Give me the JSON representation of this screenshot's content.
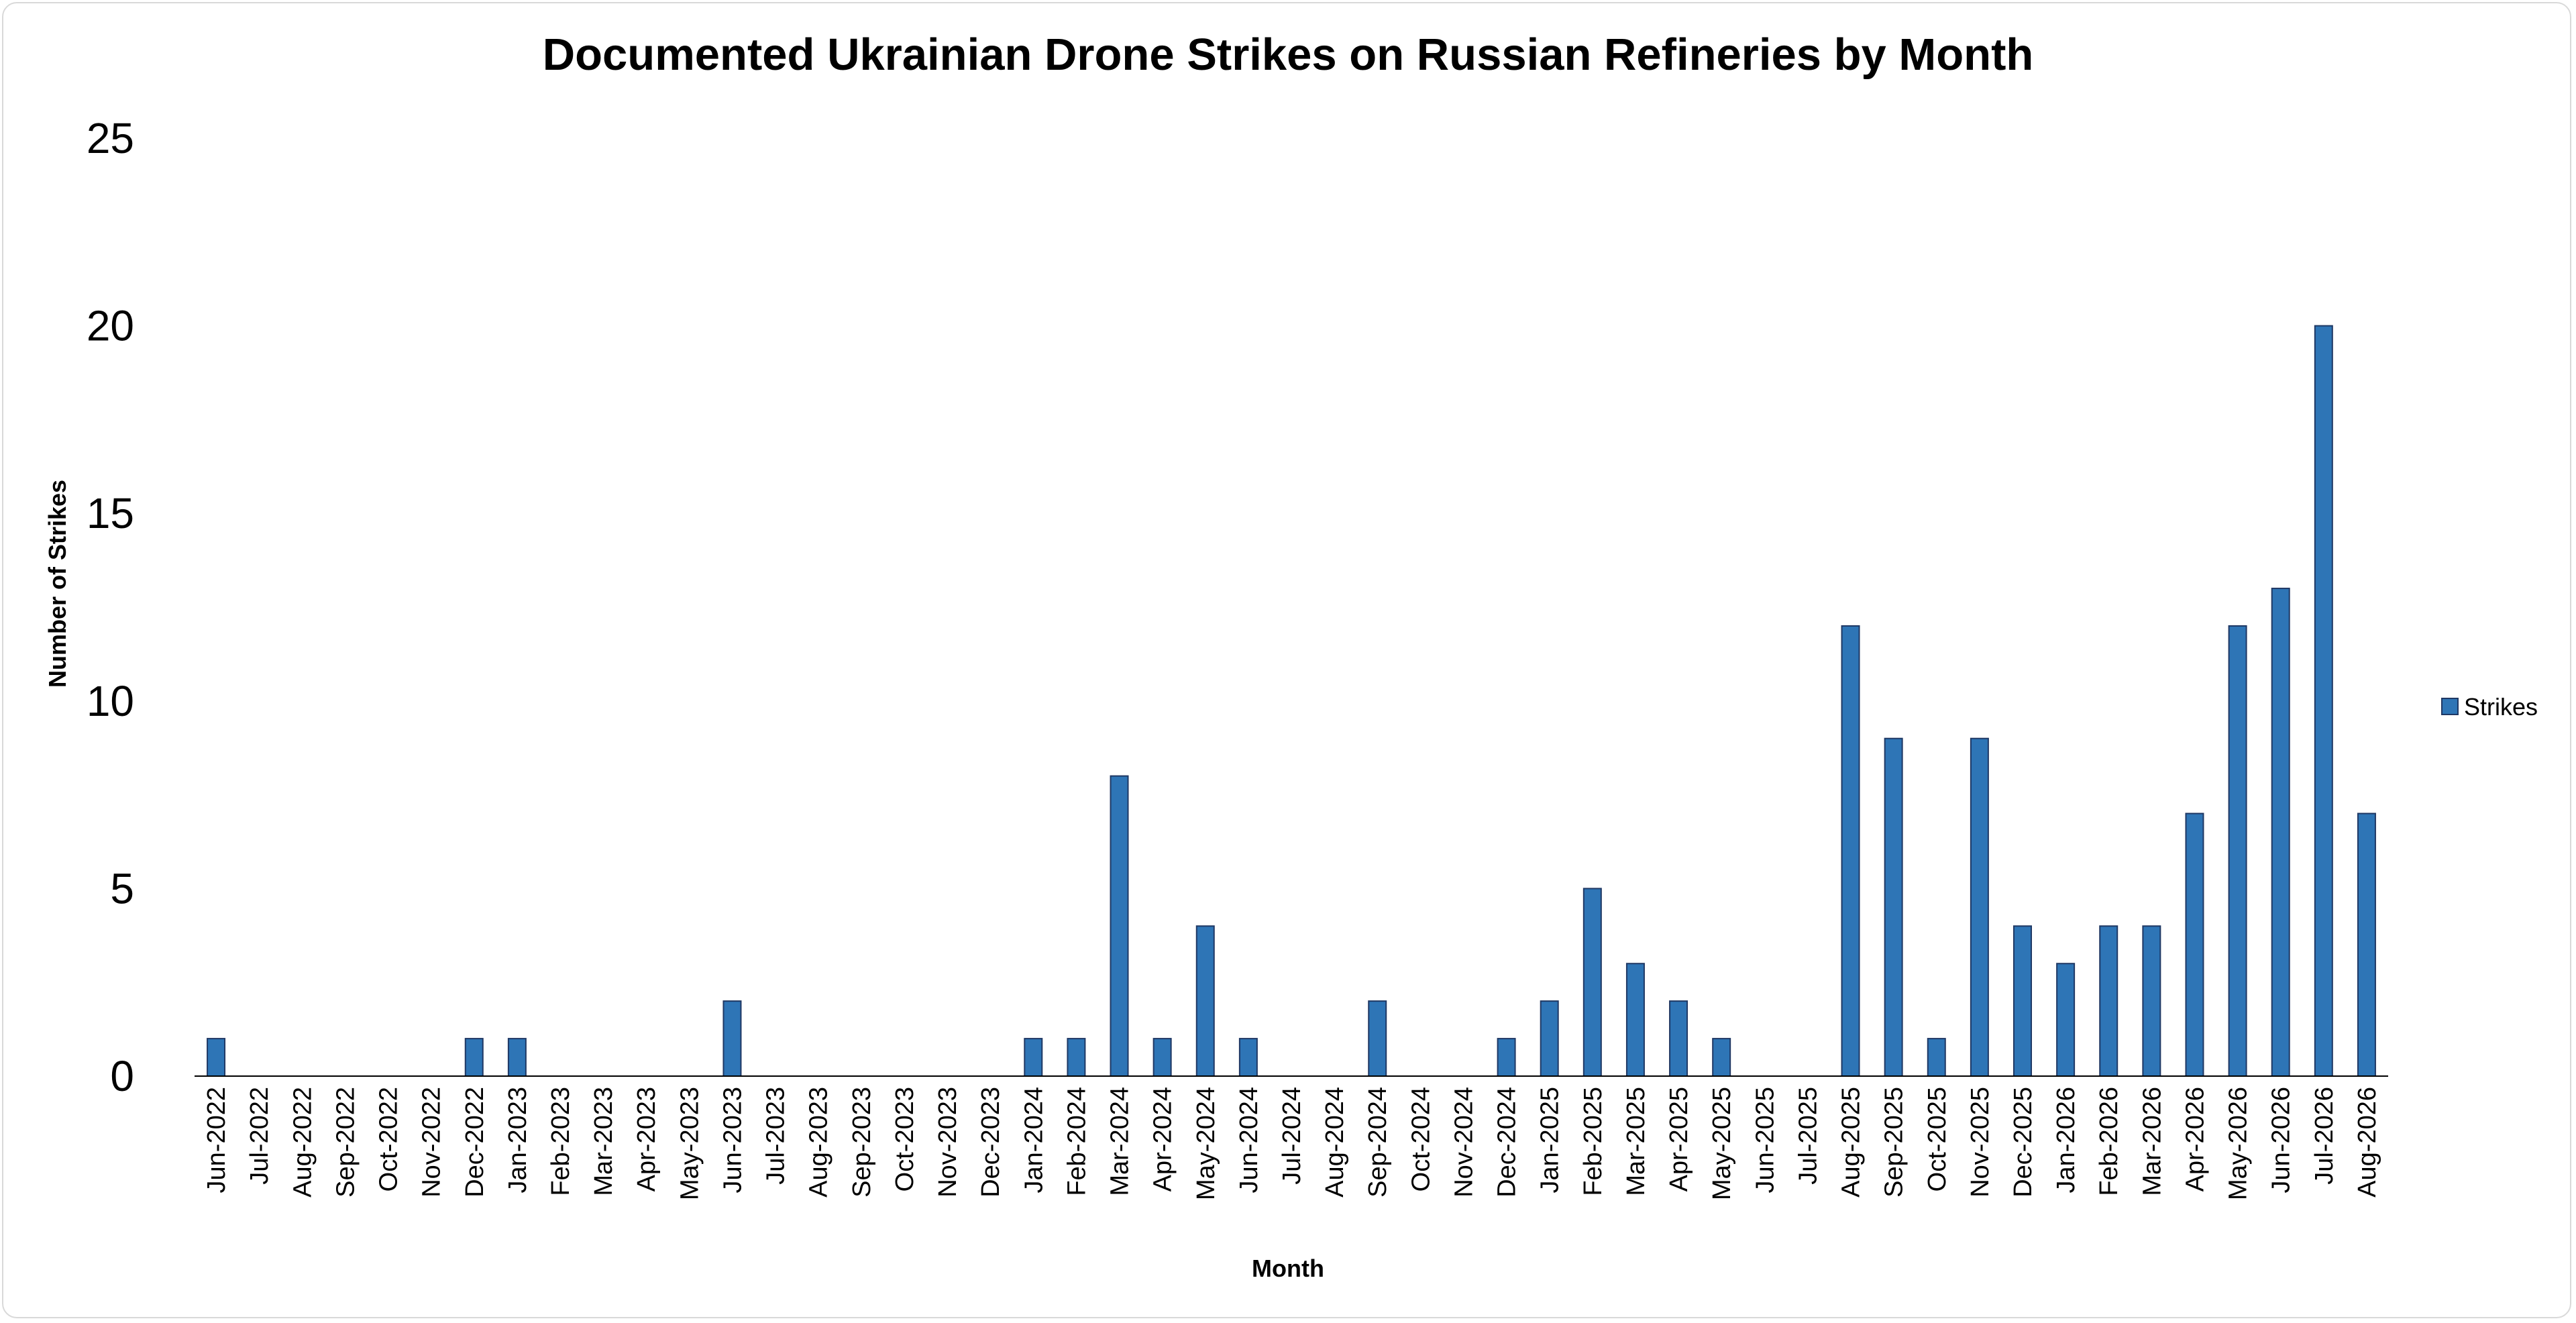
{
  "chart_data": {
    "type": "bar",
    "title": "Documented Ukrainian Drone Strikes on Russian Refineries by Month",
    "xlabel": "Month",
    "ylabel": "Number of Strikes",
    "ylim": [
      0,
      25
    ],
    "yticks": [
      0,
      5,
      10,
      15,
      20,
      25
    ],
    "grid": false,
    "legend_position": "right",
    "bar_color": "#2e75b6",
    "bar_edge_color": "#1f3864",
    "categories": [
      "Jun-2022",
      "Jul-2022",
      "Aug-2022",
      "Sep-2022",
      "Oct-2022",
      "Nov-2022",
      "Dec-2022",
      "Jan-2023",
      "Feb-2023",
      "Mar-2023",
      "Apr-2023",
      "May-2023",
      "Jun-2023",
      "Jul-2023",
      "Aug-2023",
      "Sep-2023",
      "Oct-2023",
      "Nov-2023",
      "Dec-2023",
      "Jan-2024",
      "Feb-2024",
      "Mar-2024",
      "Apr-2024",
      "May-2024",
      "Jun-2024",
      "Jul-2024",
      "Aug-2024",
      "Sep-2024",
      "Oct-2024",
      "Nov-2024",
      "Dec-2024",
      "Jan-2025",
      "Feb-2025",
      "Mar-2025",
      "Apr-2025",
      "May-2025",
      "Jun-2025",
      "Jul-2025",
      "Aug-2025",
      "Sep-2025",
      "Oct-2025",
      "Nov-2025",
      "Dec-2025",
      "Jan-2026",
      "Feb-2026",
      "Mar-2026",
      "Apr-2026",
      "May-2026",
      "Jun-2026",
      "Jul-2026",
      "Aug-2026"
    ],
    "series": [
      {
        "name": "Strikes",
        "values": [
          1,
          0,
          0,
          0,
          0,
          0,
          1,
          1,
          0,
          0,
          0,
          0,
          2,
          0,
          0,
          0,
          0,
          0,
          0,
          1,
          1,
          8,
          1,
          4,
          1,
          0,
          0,
          2,
          0,
          0,
          1,
          2,
          5,
          3,
          2,
          1,
          0,
          0,
          12,
          9,
          1,
          9,
          4,
          3,
          4,
          4,
          7,
          12,
          13,
          20,
          7
        ]
      }
    ]
  }
}
